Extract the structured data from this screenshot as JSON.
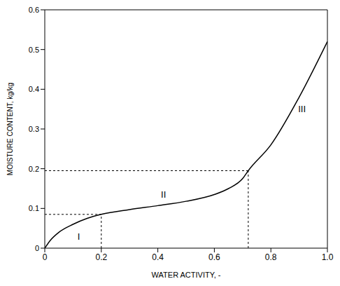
{
  "chart_data": {
    "type": "line",
    "x_label": "WATER ACTIVITY, -",
    "y_label": "MOISTURE CONTENT, kg/kg",
    "x": [
      0,
      0.02,
      0.05,
      0.1,
      0.15,
      0.2,
      0.3,
      0.4,
      0.5,
      0.6,
      0.65,
      0.7,
      0.72,
      0.8,
      0.9,
      1.0
    ],
    "values": [
      0,
      0.02,
      0.04,
      0.06,
      0.075,
      0.085,
      0.097,
      0.107,
      0.118,
      0.135,
      0.15,
      0.175,
      0.195,
      0.26,
      0.38,
      0.52
    ],
    "color": "#000000",
    "xlim": [
      0,
      1
    ],
    "ylim": [
      0,
      0.6
    ],
    "xticks": [
      0,
      0.2,
      0.4,
      0.6,
      0.8,
      {
        "value": 1,
        "label": "1.0"
      }
    ],
    "yticks": [
      0,
      0.1,
      0.2,
      0.3,
      0.4,
      0.5,
      0.6
    ],
    "grid": false,
    "boundaries": [
      {
        "x": 0.2,
        "y": 0.085
      },
      {
        "x": 0.72,
        "y": 0.195
      }
    ],
    "annotations": [
      {
        "text": "I",
        "x": 0.12,
        "y": 0.03
      },
      {
        "text": "II",
        "x": 0.42,
        "y": 0.135
      },
      {
        "text": "III",
        "x": 0.91,
        "y": 0.35
      }
    ]
  }
}
